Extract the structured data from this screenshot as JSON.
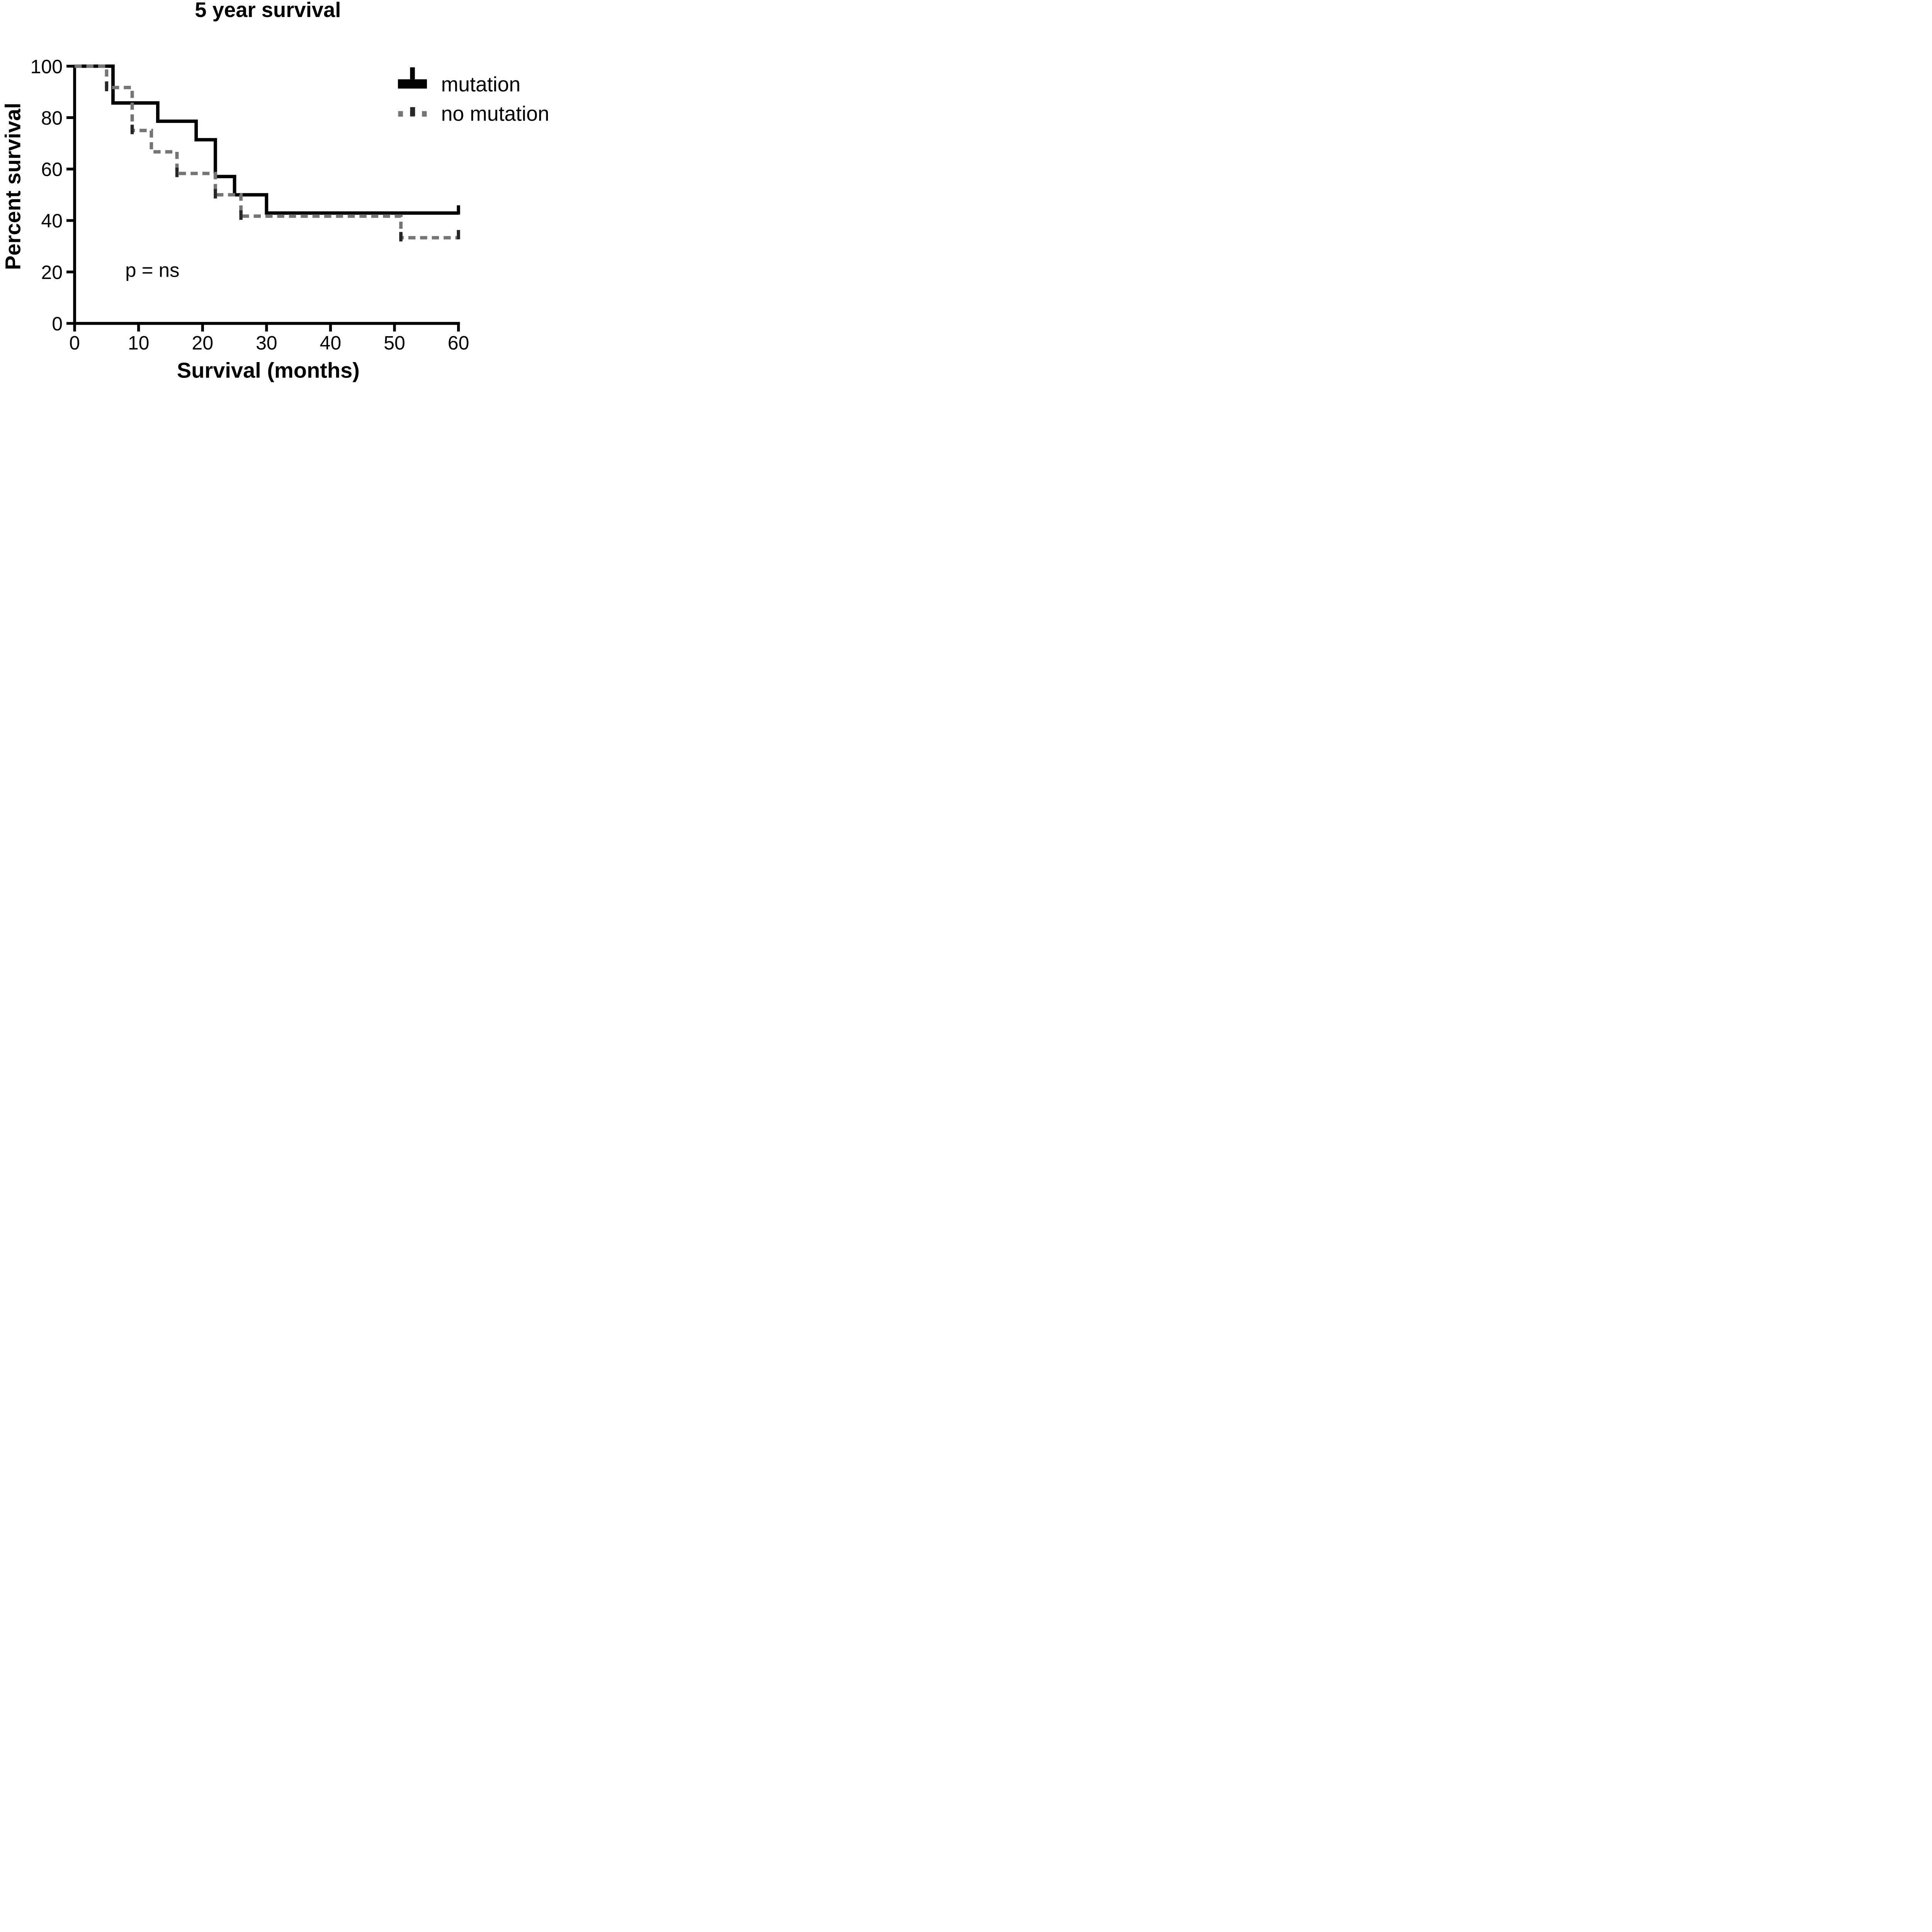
{
  "title": "5 year survival",
  "x_axis": {
    "label": "Survival (months)",
    "ticks": [
      0,
      10,
      20,
      30,
      40,
      50,
      60
    ],
    "range": [
      0,
      60
    ]
  },
  "y_axis": {
    "label": "Percent survival",
    "ticks": [
      0,
      20,
      40,
      60,
      80,
      100
    ],
    "range": [
      0,
      100
    ]
  },
  "annotation": {
    "text": "p = ns"
  },
  "legend": {
    "position": "top-right",
    "entries": [
      {
        "label": "mutation",
        "style": "solid",
        "color": "#000000"
      },
      {
        "label": "no mutation",
        "style": "dashed",
        "color": "#757575"
      }
    ]
  },
  "colors": {
    "axis": "#000000",
    "solid_series": "#000000",
    "dashed_series": "#757575",
    "censor_tick": "#262626",
    "background": "#ffffff"
  },
  "chart_data": {
    "type": "line",
    "subtype": "kaplan-meier-step",
    "title": "5 year survival",
    "xlabel": "Survival (months)",
    "ylabel": "Percent survival",
    "xlim": [
      0,
      60
    ],
    "ylim": [
      0,
      100
    ],
    "grid": false,
    "legend_position": "top-right",
    "series": [
      {
        "name": "mutation",
        "style": "solid",
        "color": "#000000",
        "steps": [
          [
            0,
            100
          ],
          [
            6,
            100
          ],
          [
            6,
            85.7
          ],
          [
            13,
            85.7
          ],
          [
            13,
            78.6
          ],
          [
            19,
            78.6
          ],
          [
            19,
            71.4
          ],
          [
            22,
            71.4
          ],
          [
            22,
            57.1
          ],
          [
            25,
            57.1
          ],
          [
            25,
            50
          ],
          [
            30,
            50
          ],
          [
            30,
            42.9
          ],
          [
            60,
            42.9
          ]
        ],
        "event_months": [
          6,
          13,
          19,
          22,
          25,
          30
        ],
        "censor_marks": [],
        "end_tick": [
          60,
          42.9
        ]
      },
      {
        "name": "no mutation",
        "style": "dashed",
        "color": "#757575",
        "steps": [
          [
            0,
            100
          ],
          [
            5,
            100
          ],
          [
            5,
            91.7
          ],
          [
            9,
            91.7
          ],
          [
            9,
            75
          ],
          [
            12,
            75
          ],
          [
            12,
            66.7
          ],
          [
            16,
            66.7
          ],
          [
            16,
            58.3
          ],
          [
            22,
            58.3
          ],
          [
            22,
            50
          ],
          [
            26,
            50
          ],
          [
            26,
            41.7
          ],
          [
            51,
            41.7
          ],
          [
            51,
            33.3
          ],
          [
            60,
            33.3
          ]
        ],
        "event_months": [
          5,
          9,
          12,
          16,
          22,
          26,
          51
        ],
        "censor_marks": [
          [
            5,
            91.7
          ],
          [
            9,
            75
          ],
          [
            16,
            58.3
          ],
          [
            22,
            50
          ],
          [
            26,
            41.7
          ],
          [
            51,
            33.3
          ]
        ],
        "end_tick": [
          60,
          33.3
        ]
      }
    ]
  }
}
